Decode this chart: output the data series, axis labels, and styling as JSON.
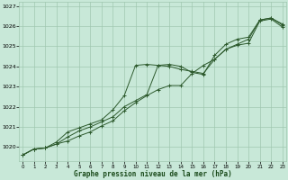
{
  "title": "Graphe pression niveau de la mer (hPa)",
  "bg_color": "#c8e8d8",
  "plot_bg_color": "#c8e8d8",
  "grid_color": "#a0c8b0",
  "line_color": "#2d5a2d",
  "xlim": [
    -0.3,
    23.3
  ],
  "ylim": [
    1019.3,
    1027.2
  ],
  "yticks": [
    1020,
    1021,
    1022,
    1023,
    1024,
    1025,
    1026,
    1027
  ],
  "xticks": [
    0,
    1,
    2,
    3,
    4,
    5,
    6,
    7,
    8,
    9,
    10,
    11,
    12,
    13,
    14,
    15,
    16,
    17,
    18,
    19,
    20,
    21,
    22,
    23
  ],
  "series1": [
    1019.6,
    1019.9,
    1019.95,
    1020.15,
    1020.3,
    1020.55,
    1020.75,
    1021.05,
    1021.3,
    1021.8,
    1022.2,
    1022.55,
    1022.85,
    1023.05,
    1023.05,
    1023.65,
    1024.05,
    1024.35,
    1024.85,
    1025.1,
    1025.35,
    1026.3,
    1026.4,
    1026.1
  ],
  "series2": [
    1019.6,
    1019.9,
    1019.95,
    1020.25,
    1020.75,
    1020.95,
    1021.15,
    1021.35,
    1021.85,
    1022.55,
    1024.05,
    1024.1,
    1024.05,
    1024.0,
    1023.85,
    1023.75,
    1023.65,
    1024.35,
    1024.85,
    1025.05,
    1025.15,
    1026.25,
    1026.35,
    1025.95
  ],
  "series3": [
    1019.6,
    1019.9,
    1019.95,
    1020.15,
    1020.5,
    1020.8,
    1021.0,
    1021.25,
    1021.5,
    1022.0,
    1022.3,
    1022.6,
    1024.05,
    1024.1,
    1024.0,
    1023.7,
    1023.6,
    1024.55,
    1025.1,
    1025.35,
    1025.45,
    1026.3,
    1026.4,
    1026.05
  ]
}
